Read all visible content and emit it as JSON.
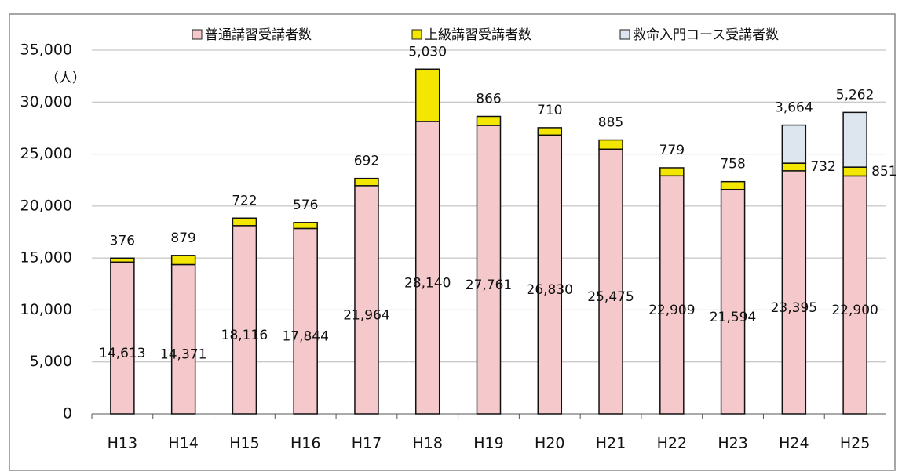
{
  "chart_data": {
    "type": "stacked_bar",
    "y_unit_label": "（人）",
    "categories": [
      "H13",
      "H14",
      "H15",
      "H16",
      "H17",
      "H18",
      "H19",
      "H20",
      "H21",
      "H22",
      "H23",
      "H24",
      "H25"
    ],
    "series": [
      {
        "name": "普通講習受講者数",
        "color": "#f5c9cb",
        "values": [
          14613,
          14371,
          18116,
          17844,
          21964,
          28140,
          27761,
          26830,
          25475,
          22909,
          21594,
          23395,
          22900
        ],
        "value_labels": [
          "14,613",
          "14,371",
          "18,116",
          "17,844",
          "21,964",
          "28,140",
          "27,761",
          "26,830",
          "25,475",
          "22,909",
          "21,594",
          "23,395",
          "22,900"
        ]
      },
      {
        "name": "上級講習受講者数",
        "color": "#f3e600",
        "values": [
          376,
          879,
          722,
          576,
          692,
          5030,
          866,
          710,
          885,
          779,
          758,
          732,
          851
        ],
        "value_labels": [
          "376",
          "879",
          "722",
          "576",
          "692",
          "5,030",
          "866",
          "710",
          "885",
          "779",
          "758",
          "732",
          "851"
        ]
      },
      {
        "name": "救命入門コース受講者数",
        "color": "#dde6ee",
        "values": [
          null,
          null,
          null,
          null,
          null,
          null,
          null,
          null,
          null,
          null,
          null,
          3664,
          5262
        ],
        "value_labels": [
          null,
          null,
          null,
          null,
          null,
          null,
          null,
          null,
          null,
          null,
          null,
          "3,664",
          "5,262"
        ]
      }
    ],
    "ylim": [
      0,
      35000
    ],
    "yticks": [
      0,
      {
        "value": 5000,
        "label": "5,000"
      },
      {
        "value": 10000,
        "label": "10,000"
      },
      {
        "value": 15000,
        "label": "15,000"
      },
      {
        "value": 20000,
        "label": "20,000"
      },
      {
        "value": 25000,
        "label": "25,000"
      },
      {
        "value": 30000,
        "label": "30,000"
      },
      {
        "value": 35000,
        "label": "35,000"
      }
    ],
    "grid": true,
    "legend": "top"
  }
}
